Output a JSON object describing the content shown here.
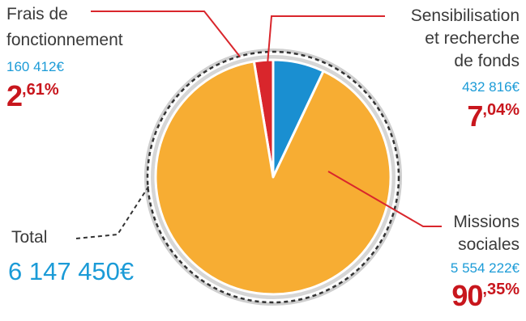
{
  "chart_data": {
    "type": "pie",
    "title": "",
    "slices": [
      {
        "label": "Frais de fonctionnement",
        "amount": "160 412€",
        "pct_int": "2",
        "pct_dec": ",61%",
        "value": 2.61,
        "color": "#d9262c"
      },
      {
        "label": "Sensibilisation et recherche de fonds",
        "amount": "432 816€",
        "pct_int": "7",
        "pct_dec": ",04%",
        "value": 7.04,
        "color": "#1a8fd1"
      },
      {
        "label": "Missions sociales",
        "amount": "5 554 222€",
        "pct_int": "90",
        "pct_dec": ",35%",
        "value": 90.35,
        "color": "#f7ad33"
      }
    ],
    "total": {
      "label": "Total",
      "amount": "6 147 450€"
    }
  },
  "labels": {
    "frais_line1": "Frais de",
    "frais_line2": "fonctionnement",
    "sens_line1": "Sensibilisation",
    "sens_line2": "et recherche",
    "sens_line3": "de fonds",
    "missions_line1": "Missions",
    "missions_line2": "sociales"
  }
}
